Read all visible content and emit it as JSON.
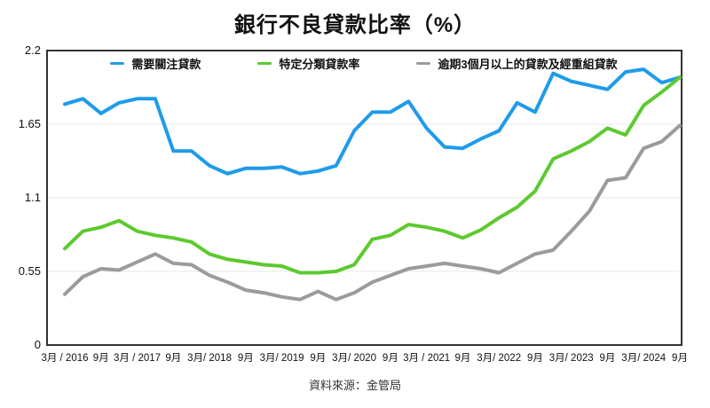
{
  "title": "銀行不良貸款比率（%）",
  "source": "資料來源：金管局",
  "chart_data": {
    "type": "line",
    "title": "銀行不良貸款比率（%）",
    "x_tick_labels": [
      "3月 / 2016",
      "9月",
      "3月 / 2017",
      "9月",
      "3月/ 2018",
      "9月",
      "3月/ 2019",
      "9月",
      "3月/ 2020",
      "9月",
      "3月 / 2021",
      "9月",
      "3月/ 2022",
      "9月",
      "3月/ 2023",
      "9月",
      "3月/ 2024",
      "9月"
    ],
    "label_every": 2,
    "x_count": 35,
    "ylim": [
      0,
      2.2
    ],
    "y_ticks": [
      0,
      0.55,
      1.1,
      1.65,
      2.2
    ],
    "y_tick_labels": [
      "0",
      "0.55",
      "1.1",
      "1.65",
      "2.2"
    ],
    "grid": true,
    "legend_position": "top",
    "frame_color": "#333333",
    "grid_color": "#e7e7e7",
    "series": [
      {
        "name": "需要關注貸款",
        "color": "#1E9BEA",
        "values": [
          1.8,
          1.84,
          1.73,
          1.81,
          1.84,
          1.84,
          1.45,
          1.45,
          1.34,
          1.28,
          1.32,
          1.32,
          1.33,
          1.28,
          1.3,
          1.34,
          1.6,
          1.74,
          1.74,
          1.82,
          1.62,
          1.48,
          1.47,
          1.54,
          1.6,
          1.81,
          1.74,
          2.03,
          1.97,
          1.94,
          1.91,
          2.04,
          2.06,
          1.96,
          2.0
        ]
      },
      {
        "name": "特定分類貸款率",
        "color": "#5DC92F",
        "values": [
          0.72,
          0.85,
          0.88,
          0.93,
          0.85,
          0.82,
          0.8,
          0.77,
          0.68,
          0.64,
          0.62,
          0.6,
          0.59,
          0.54,
          0.54,
          0.55,
          0.6,
          0.79,
          0.82,
          0.9,
          0.88,
          0.85,
          0.8,
          0.86,
          0.95,
          1.03,
          1.15,
          1.39,
          1.45,
          1.52,
          1.62,
          1.57,
          1.79,
          1.89,
          2.0
        ]
      },
      {
        "name": "逾期3個月以上的貸款及經重組貸款",
        "color": "#9B9B9B",
        "values": [
          0.38,
          0.51,
          0.57,
          0.56,
          0.62,
          0.68,
          0.61,
          0.6,
          0.52,
          0.47,
          0.41,
          0.39,
          0.36,
          0.34,
          0.4,
          0.34,
          0.39,
          0.47,
          0.52,
          0.57,
          0.59,
          0.61,
          0.59,
          0.57,
          0.54,
          0.61,
          0.68,
          0.71,
          0.85,
          1.0,
          1.23,
          1.25,
          1.47,
          1.52,
          1.64
        ]
      }
    ]
  }
}
